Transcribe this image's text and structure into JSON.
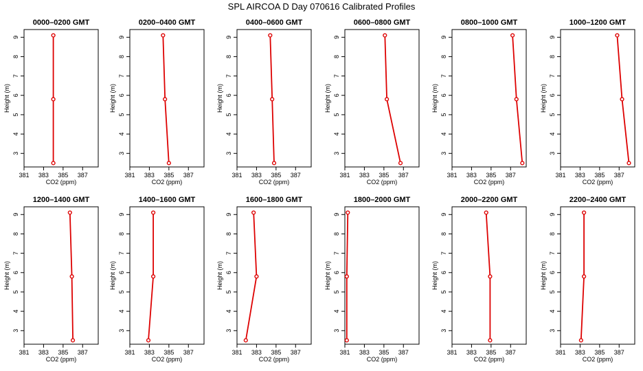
{
  "figure": {
    "title": "SPL AIRCOA D  Day 070616  Calibrated Profiles"
  },
  "colors": {
    "series": "#dd0000",
    "axis": "#000000"
  },
  "chart_data": [
    {
      "type": "line",
      "title": "0000–0200 GMT",
      "xlabel": "CO2 (ppm)",
      "ylabel": "Height (m)",
      "xlim": [
        381,
        388.6
      ],
      "ylim": [
        2.3,
        9.4
      ],
      "xticks": [
        381,
        383,
        385,
        387
      ],
      "yticks": [
        3,
        4,
        5,
        6,
        7,
        8,
        9
      ],
      "points": [
        {
          "x": 384.0,
          "y": 2.5
        },
        {
          "x": 384.0,
          "y": 5.8
        },
        {
          "x": 384.0,
          "y": 9.1
        }
      ]
    },
    {
      "type": "line",
      "title": "0200–0400 GMT",
      "xlabel": "CO2 (ppm)",
      "ylabel": "Height (m)",
      "xlim": [
        381,
        388.6
      ],
      "ylim": [
        2.3,
        9.4
      ],
      "xticks": [
        381,
        383,
        385,
        387
      ],
      "yticks": [
        3,
        4,
        5,
        6,
        7,
        8,
        9
      ],
      "points": [
        {
          "x": 385.0,
          "y": 2.5
        },
        {
          "x": 384.6,
          "y": 5.8
        },
        {
          "x": 384.4,
          "y": 9.1
        }
      ]
    },
    {
      "type": "line",
      "title": "0400–0600 GMT",
      "xlabel": "CO2 (ppm)",
      "ylabel": "Height (m)",
      "xlim": [
        381,
        388.6
      ],
      "ylim": [
        2.3,
        9.4
      ],
      "xticks": [
        381,
        383,
        385,
        387
      ],
      "yticks": [
        3,
        4,
        5,
        6,
        7,
        8,
        9
      ],
      "points": [
        {
          "x": 384.8,
          "y": 2.5
        },
        {
          "x": 384.6,
          "y": 5.8
        },
        {
          "x": 384.4,
          "y": 9.1
        }
      ]
    },
    {
      "type": "line",
      "title": "0600–0800 GMT",
      "xlabel": "CO2 (ppm)",
      "ylabel": "Height (m)",
      "xlim": [
        381,
        388.6
      ],
      "ylim": [
        2.3,
        9.4
      ],
      "xticks": [
        381,
        383,
        385,
        387
      ],
      "yticks": [
        3,
        4,
        5,
        6,
        7,
        8,
        9
      ],
      "points": [
        {
          "x": 386.7,
          "y": 2.5
        },
        {
          "x": 385.3,
          "y": 5.8
        },
        {
          "x": 385.1,
          "y": 9.1
        }
      ]
    },
    {
      "type": "line",
      "title": "0800–1000 GMT",
      "xlabel": "CO2 (ppm)",
      "ylabel": "Height (m)",
      "xlim": [
        381,
        388.6
      ],
      "ylim": [
        2.3,
        9.4
      ],
      "xticks": [
        381,
        383,
        385,
        387
      ],
      "yticks": [
        3,
        4,
        5,
        6,
        7,
        8,
        9
      ],
      "points": [
        {
          "x": 388.2,
          "y": 2.5
        },
        {
          "x": 387.6,
          "y": 5.8
        },
        {
          "x": 387.2,
          "y": 9.1
        }
      ]
    },
    {
      "type": "line",
      "title": "1000–1200 GMT",
      "xlabel": "CO2 (ppm)",
      "ylabel": "Height (m)",
      "xlim": [
        381,
        388.6
      ],
      "ylim": [
        2.3,
        9.4
      ],
      "xticks": [
        381,
        383,
        385,
        387
      ],
      "yticks": [
        3,
        4,
        5,
        6,
        7,
        8,
        9
      ],
      "points": [
        {
          "x": 388.0,
          "y": 2.5
        },
        {
          "x": 387.3,
          "y": 5.8
        },
        {
          "x": 386.8,
          "y": 9.1
        }
      ]
    },
    {
      "type": "line",
      "title": "1200–1400 GMT",
      "xlabel": "CO2 (ppm)",
      "ylabel": "Height (m)",
      "xlim": [
        381,
        388.6
      ],
      "ylim": [
        2.3,
        9.4
      ],
      "xticks": [
        381,
        383,
        385,
        387
      ],
      "yticks": [
        3,
        4,
        5,
        6,
        7,
        8,
        9
      ],
      "points": [
        {
          "x": 386.0,
          "y": 2.5
        },
        {
          "x": 385.9,
          "y": 5.8
        },
        {
          "x": 385.7,
          "y": 9.1
        }
      ]
    },
    {
      "type": "line",
      "title": "1400–1600 GMT",
      "xlabel": "CO2 (ppm)",
      "ylabel": "Height (m)",
      "xlim": [
        381,
        388.6
      ],
      "ylim": [
        2.3,
        9.4
      ],
      "xticks": [
        381,
        383,
        385,
        387
      ],
      "yticks": [
        3,
        4,
        5,
        6,
        7,
        8,
        9
      ],
      "points": [
        {
          "x": 382.9,
          "y": 2.5
        },
        {
          "x": 383.4,
          "y": 5.8
        },
        {
          "x": 383.4,
          "y": 9.1
        }
      ]
    },
    {
      "type": "line",
      "title": "1600–1800 GMT",
      "xlabel": "CO2 (ppm)",
      "ylabel": "Height (m)",
      "xlim": [
        381,
        388.6
      ],
      "ylim": [
        2.3,
        9.4
      ],
      "xticks": [
        381,
        383,
        385,
        387
      ],
      "yticks": [
        3,
        4,
        5,
        6,
        7,
        8,
        9
      ],
      "points": [
        {
          "x": 381.9,
          "y": 2.5
        },
        {
          "x": 383.0,
          "y": 5.8
        },
        {
          "x": 382.7,
          "y": 9.1
        }
      ]
    },
    {
      "type": "line",
      "title": "1800–2000 GMT",
      "xlabel": "CO2 (ppm)",
      "ylabel": "Height (m)",
      "xlim": [
        381,
        388.6
      ],
      "ylim": [
        2.3,
        9.4
      ],
      "xticks": [
        381,
        383,
        385,
        387
      ],
      "yticks": [
        3,
        4,
        5,
        6,
        7,
        8,
        9
      ],
      "points": [
        {
          "x": 381.2,
          "y": 2.5
        },
        {
          "x": 381.2,
          "y": 5.8
        },
        {
          "x": 381.3,
          "y": 9.1
        }
      ]
    },
    {
      "type": "line",
      "title": "2000–2200 GMT",
      "xlabel": "CO2 (ppm)",
      "ylabel": "Height (m)",
      "xlim": [
        381,
        388.6
      ],
      "ylim": [
        2.3,
        9.4
      ],
      "xticks": [
        381,
        383,
        385,
        387
      ],
      "yticks": [
        3,
        4,
        5,
        6,
        7,
        8,
        9
      ],
      "points": [
        {
          "x": 384.9,
          "y": 2.5
        },
        {
          "x": 384.9,
          "y": 5.8
        },
        {
          "x": 384.5,
          "y": 9.1
        }
      ]
    },
    {
      "type": "line",
      "title": "2200–2400 GMT",
      "xlabel": "CO2 (ppm)",
      "ylabel": "Height (m)",
      "xlim": [
        381,
        388.6
      ],
      "ylim": [
        2.3,
        9.4
      ],
      "xticks": [
        381,
        383,
        385,
        387
      ],
      "yticks": [
        3,
        4,
        5,
        6,
        7,
        8,
        9
      ],
      "points": [
        {
          "x": 383.1,
          "y": 2.5
        },
        {
          "x": 383.4,
          "y": 5.8
        },
        {
          "x": 383.4,
          "y": 9.1
        }
      ]
    }
  ]
}
